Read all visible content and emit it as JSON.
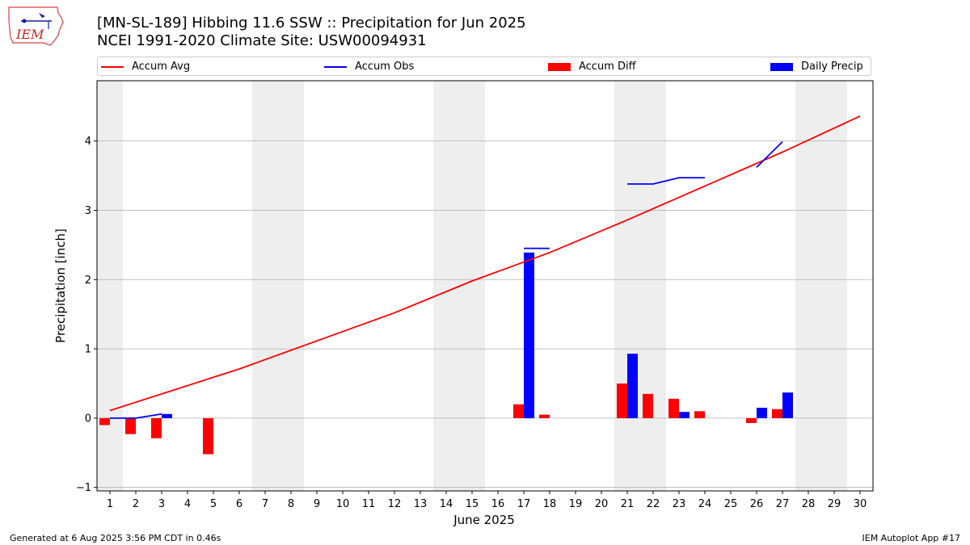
{
  "header": {
    "title_line1": "[MN-SL-189] Hibbing 11.6 SSW :: Precipitation for Jun 2025",
    "title_line2": "NCEI 1991-2020 Climate Site: USW00094931"
  },
  "logo": {
    "text": "IEM"
  },
  "legend": {
    "items": [
      {
        "label": "Accum Avg",
        "color": "#ff0000",
        "kind": "line"
      },
      {
        "label": "Accum Obs",
        "color": "#0000ff",
        "kind": "line"
      },
      {
        "label": "Accum Diff",
        "color": "#ff0000",
        "kind": "box"
      },
      {
        "label": "Daily Precip",
        "color": "#0000ff",
        "kind": "box"
      }
    ]
  },
  "footer": {
    "left": "Generated at 6 Aug 2025 3:56 PM CDT in 0.46s",
    "right": "IEM Autoplot App #17"
  },
  "chart_data": {
    "type": "bar",
    "xlabel": "June 2025",
    "ylabel": "Precipitation [inch]",
    "xlim": [
      0.5,
      30.5
    ],
    "ylim": [
      -1.05,
      4.87
    ],
    "yticks": [
      -1,
      0,
      1,
      2,
      3,
      4
    ],
    "xticks": [
      1,
      2,
      3,
      4,
      5,
      6,
      7,
      8,
      9,
      10,
      11,
      12,
      13,
      14,
      15,
      16,
      17,
      18,
      19,
      20,
      21,
      22,
      23,
      24,
      25,
      26,
      27,
      28,
      29,
      30
    ],
    "grid": "horizontal",
    "weekend_shading_days": [
      [
        0.5,
        1.5
      ],
      [
        6.5,
        8.5
      ],
      [
        13.5,
        15.5
      ],
      [
        20.5,
        22.5
      ],
      [
        27.5,
        29.5
      ]
    ],
    "colors": {
      "avg": "#ff0000",
      "obs": "#0000ff",
      "diff": "#ff0000",
      "daily": "#0000ff",
      "shade": "#eeeeee",
      "grid": "#b0b0b0"
    },
    "series": [
      {
        "name": "Accum Avg",
        "kind": "line",
        "x": [
          1,
          6,
          12,
          15,
          18,
          21,
          24,
          27,
          30
        ],
        "y": [
          0.11,
          0.71,
          1.52,
          1.98,
          2.39,
          2.86,
          3.35,
          3.84,
          4.36
        ]
      },
      {
        "name": "Accum Obs",
        "kind": "line",
        "segments": [
          {
            "x": [
              1,
              2,
              3
            ],
            "y": [
              0.0,
              0.0,
              0.06
            ]
          },
          {
            "x": [
              17,
              18
            ],
            "y": [
              2.45,
              2.45
            ]
          },
          {
            "x": [
              21,
              22,
              23,
              24
            ],
            "y": [
              3.38,
              3.38,
              3.47,
              3.47
            ]
          },
          {
            "x": [
              26,
              27
            ],
            "y": [
              3.62,
              3.99
            ]
          }
        ]
      },
      {
        "name": "Accum Diff",
        "kind": "bar",
        "x": [
          1,
          2,
          3,
          5,
          17,
          18,
          21,
          22,
          23,
          24,
          26,
          27
        ],
        "values": [
          -0.1,
          -0.23,
          -0.29,
          -0.52,
          0.2,
          0.05,
          0.5,
          0.35,
          0.28,
          0.1,
          -0.07,
          0.13
        ]
      },
      {
        "name": "Daily Precip",
        "kind": "bar",
        "x": [
          3,
          17,
          21,
          23,
          26,
          27
        ],
        "values": [
          0.06,
          2.39,
          0.93,
          0.09,
          0.15,
          0.37
        ]
      }
    ]
  }
}
